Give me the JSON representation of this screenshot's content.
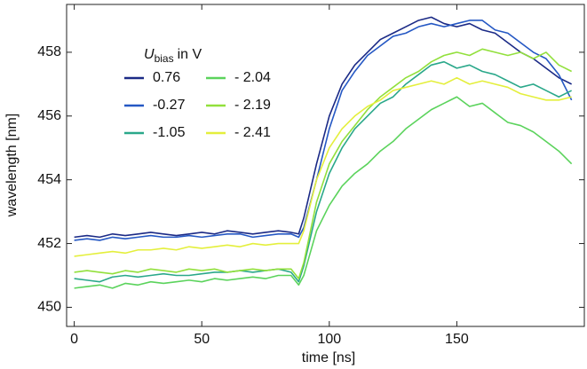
{
  "chart_data": {
    "type": "line",
    "xlabel": "time [ns]",
    "ylabel": "wavelength [nm]",
    "legend_title": {
      "symbol": "U",
      "subscript": "bias",
      "text": "in V"
    },
    "legend": "upper left",
    "xlim": [
      -3,
      200
    ],
    "ylim": [
      449.4,
      459.5
    ],
    "xticks": [
      0,
      50,
      100,
      150
    ],
    "yticks": [
      450,
      452,
      454,
      456,
      458
    ],
    "x": [
      0,
      5,
      10,
      15,
      20,
      25,
      30,
      35,
      40,
      45,
      50,
      55,
      60,
      65,
      70,
      75,
      80,
      85,
      88,
      90,
      95,
      100,
      105,
      110,
      115,
      120,
      125,
      130,
      135,
      140,
      145,
      150,
      155,
      160,
      165,
      170,
      175,
      180,
      185,
      190,
      195
    ],
    "series": [
      {
        "name": "0.76",
        "color": "#1b2a86",
        "values": [
          452.2,
          452.25,
          452.2,
          452.3,
          452.25,
          452.3,
          452.35,
          452.3,
          452.25,
          452.3,
          452.35,
          452.3,
          452.4,
          452.35,
          452.3,
          452.35,
          452.4,
          452.35,
          452.3,
          452.8,
          454.5,
          456.0,
          457.0,
          457.6,
          458.0,
          458.4,
          458.6,
          458.8,
          459.0,
          459.1,
          458.9,
          458.8,
          458.9,
          458.7,
          458.6,
          458.3,
          458.0,
          457.8,
          457.5,
          457.2,
          457.0
        ]
      },
      {
        "name": "-0.27",
        "color": "#2558c4",
        "values": [
          452.1,
          452.15,
          452.1,
          452.2,
          452.15,
          452.2,
          452.25,
          452.2,
          452.2,
          452.25,
          452.2,
          452.25,
          452.3,
          452.3,
          452.2,
          452.25,
          452.3,
          452.3,
          452.2,
          452.5,
          454.0,
          455.6,
          456.8,
          457.4,
          457.9,
          458.2,
          458.5,
          458.6,
          458.8,
          458.9,
          458.8,
          458.9,
          459.0,
          459.0,
          458.7,
          458.6,
          458.3,
          458.0,
          457.8,
          457.3,
          456.5
        ]
      },
      {
        "name": "-1.05",
        "color": "#2aa88a",
        "values": [
          450.9,
          450.85,
          450.8,
          450.95,
          451.0,
          450.95,
          451.0,
          451.05,
          451.0,
          451.0,
          451.05,
          451.1,
          451.1,
          451.15,
          451.1,
          451.15,
          451.2,
          451.1,
          450.8,
          451.3,
          453.0,
          454.2,
          455.0,
          455.6,
          456.0,
          456.4,
          456.6,
          457.0,
          457.3,
          457.6,
          457.7,
          457.5,
          457.6,
          457.4,
          457.3,
          457.1,
          456.9,
          457.0,
          456.8,
          456.6,
          456.8
        ]
      },
      {
        "name": "- 2.04",
        "color": "#5bd35c",
        "values": [
          450.6,
          450.65,
          450.7,
          450.6,
          450.75,
          450.7,
          450.8,
          450.75,
          450.8,
          450.85,
          450.8,
          450.9,
          450.85,
          450.9,
          450.95,
          450.9,
          451.0,
          451.0,
          450.7,
          451.0,
          452.4,
          453.2,
          453.8,
          454.2,
          454.5,
          454.9,
          455.2,
          455.6,
          455.9,
          456.2,
          456.4,
          456.6,
          456.3,
          456.4,
          456.1,
          455.8,
          455.7,
          455.5,
          455.2,
          454.9,
          454.5
        ]
      },
      {
        "name": "- 2.19",
        "color": "#92e03c",
        "values": [
          451.1,
          451.15,
          451.1,
          451.05,
          451.15,
          451.1,
          451.2,
          451.15,
          451.1,
          451.2,
          451.15,
          451.2,
          451.1,
          451.15,
          451.2,
          451.15,
          451.2,
          451.2,
          450.9,
          451.4,
          453.3,
          454.5,
          455.2,
          455.7,
          456.2,
          456.6,
          456.9,
          457.2,
          457.4,
          457.7,
          457.9,
          458.0,
          457.9,
          458.1,
          458.0,
          457.9,
          458.0,
          457.8,
          458.0,
          457.6,
          457.4
        ]
      },
      {
        "name": "- 2.41",
        "color": "#e4ef3c",
        "values": [
          451.6,
          451.65,
          451.7,
          451.75,
          451.7,
          451.8,
          451.8,
          451.85,
          451.8,
          451.9,
          451.85,
          451.9,
          451.95,
          451.9,
          452.0,
          451.95,
          452.0,
          452.0,
          452.0,
          452.4,
          454.0,
          455.0,
          455.6,
          456.0,
          456.3,
          456.5,
          456.8,
          456.9,
          457.0,
          457.1,
          457.0,
          457.2,
          457.0,
          457.1,
          457.0,
          456.9,
          456.7,
          456.6,
          456.5,
          456.5,
          456.6
        ]
      }
    ]
  }
}
